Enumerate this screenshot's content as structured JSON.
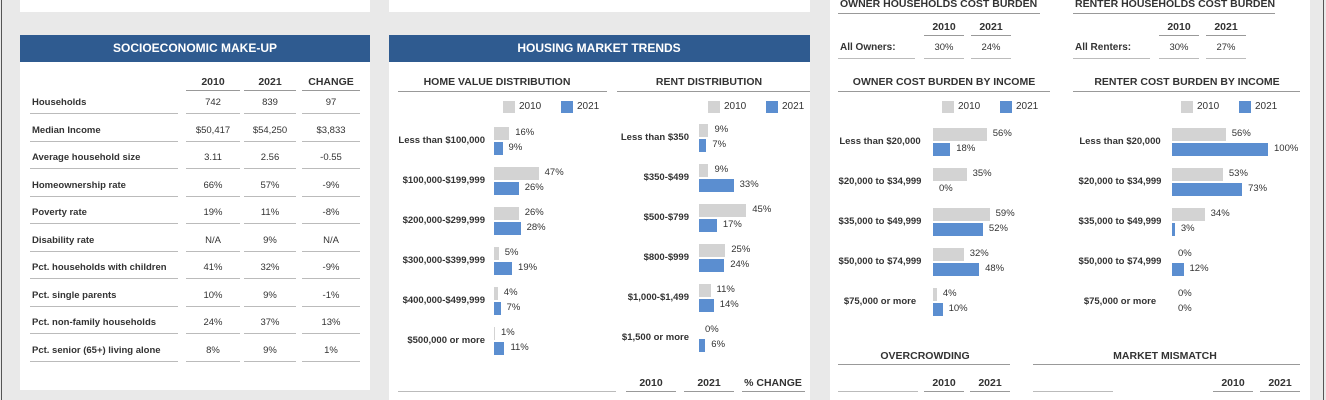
{
  "owner_burden": {
    "title": "OWNER HOUSEHOLDS COST BURDEN",
    "columns": [
      "2010",
      "2021"
    ],
    "row": {
      "label": "All Owners:",
      "values": [
        "30%",
        "24%"
      ]
    }
  },
  "renter_burden": {
    "title": "RENTER HOUSEHOLDS COST BURDEN",
    "columns": [
      "2010",
      "2021"
    ],
    "row": {
      "label": "All Renters:",
      "values": [
        "30%",
        "27%"
      ]
    }
  },
  "socioeconomic": {
    "title": "SOCIOECONOMIC MAKE-UP",
    "columns": [
      "2010",
      "2021",
      "CHANGE"
    ],
    "rows": [
      {
        "label": "Households",
        "values": [
          "742",
          "839",
          "97"
        ]
      },
      {
        "label": "Median Income",
        "values": [
          "$50,417",
          "$54,250",
          "$3,833"
        ]
      },
      {
        "label": "Average household size",
        "values": [
          "3.11",
          "2.56",
          "-0.55"
        ]
      },
      {
        "label": "Homeownership rate",
        "values": [
          "66%",
          "57%",
          "-9%"
        ]
      },
      {
        "label": "Poverty rate",
        "values": [
          "19%",
          "11%",
          "-8%"
        ]
      },
      {
        "label": "Disability rate",
        "values": [
          "N/A",
          "9%",
          "N/A"
        ]
      },
      {
        "label": "Pct. households with children",
        "values": [
          "41%",
          "32%",
          "-9%"
        ]
      },
      {
        "label": "Pct. single parents",
        "values": [
          "10%",
          "9%",
          "-1%"
        ]
      },
      {
        "label": "Pct. non-family households",
        "values": [
          "24%",
          "37%",
          "13%"
        ]
      },
      {
        "label": "Pct. senior (65+) living alone",
        "values": [
          "8%",
          "9%",
          "1%"
        ]
      }
    ]
  },
  "housing_market": {
    "title": "HOUSING MARKET TRENDS",
    "charts": [
      {
        "type": "bar",
        "title": "HOME VALUE DISTRIBUTION",
        "categories": [
          "Less than $100,000",
          "$100,000-$199,999",
          "$200,000-$299,999",
          "$300,000-$399,999",
          "$400,000-$499,999",
          "$500,000 or more"
        ],
        "series": [
          {
            "name": "2010",
            "color": "#d3d3d3",
            "values": [
              16,
              47,
              26,
              5,
              4,
              1
            ],
            "value_labels": [
              "16%",
              "47%",
              "26%",
              "5%",
              "4%",
              "1%"
            ]
          },
          {
            "name": "2021",
            "color": "#5b8ed0",
            "values": [
              9,
              26,
              28,
              19,
              7,
              11
            ],
            "value_labels": [
              "9%",
              "26%",
              "28%",
              "19%",
              "7%",
              "11%"
            ]
          }
        ],
        "xlim": [
          0,
          100
        ]
      },
      {
        "type": "bar",
        "title": "RENT DISTRIBUTION",
        "categories": [
          "Less than $350",
          "$350-$499",
          "$500-$799",
          "$800-$999",
          "$1,000-$1,499",
          "$1,500 or more"
        ],
        "series": [
          {
            "name": "2010",
            "color": "#d3d3d3",
            "values": [
              9,
              9,
              45,
              25,
              11,
              0
            ],
            "value_labels": [
              "9%",
              "9%",
              "45%",
              "25%",
              "11%",
              "0%"
            ]
          },
          {
            "name": "2021",
            "color": "#5b8ed0",
            "values": [
              7,
              33,
              17,
              24,
              14,
              6
            ],
            "value_labels": [
              "7%",
              "33%",
              "17%",
              "24%",
              "14%",
              "6%"
            ]
          }
        ],
        "xlim": [
          0,
          100
        ]
      }
    ],
    "summary_columns": [
      "2010",
      "2021",
      "% CHANGE"
    ]
  },
  "cost_burden_by_income": [
    {
      "type": "bar",
      "title": "OWNER COST BURDEN BY INCOME",
      "categories": [
        "Less than $20,000",
        "$20,000 to $34,999",
        "$35,000 to $49,999",
        "$50,000 to $74,999",
        "$75,000 or more"
      ],
      "series": [
        {
          "name": "2010",
          "color": "#d3d3d3",
          "values": [
            56,
            35,
            59,
            32,
            4
          ],
          "value_labels": [
            "56%",
            "35%",
            "59%",
            "32%",
            "4%"
          ]
        },
        {
          "name": "2021",
          "color": "#5b8ed0",
          "values": [
            18,
            0,
            52,
            48,
            10
          ],
          "value_labels": [
            "18%",
            "0%",
            "52%",
            "48%",
            "10%"
          ]
        }
      ],
      "xlim": [
        0,
        100
      ]
    },
    {
      "type": "bar",
      "title": "RENTER COST BURDEN BY INCOME",
      "categories": [
        "Less than $20,000",
        "$20,000 to $34,999",
        "$35,000 to $49,999",
        "$50,000 to $74,999",
        "$75,000 or more"
      ],
      "series": [
        {
          "name": "2010",
          "color": "#d3d3d3",
          "values": [
            56,
            53,
            34,
            0,
            0
          ],
          "value_labels": [
            "56%",
            "53%",
            "34%",
            "0%",
            "0%"
          ]
        },
        {
          "name": "2021",
          "color": "#5b8ed0",
          "values": [
            100,
            73,
            3,
            12,
            0
          ],
          "value_labels": [
            "100%",
            "73%",
            "3%",
            "12%",
            "0%"
          ]
        }
      ],
      "xlim": [
        0,
        100
      ]
    }
  ],
  "overcrowding": {
    "title": "OVERCROWDING",
    "columns": [
      "2010",
      "2021"
    ]
  },
  "market_mismatch": {
    "title": "MARKET MISMATCH",
    "columns": [
      "2010",
      "2021"
    ]
  }
}
